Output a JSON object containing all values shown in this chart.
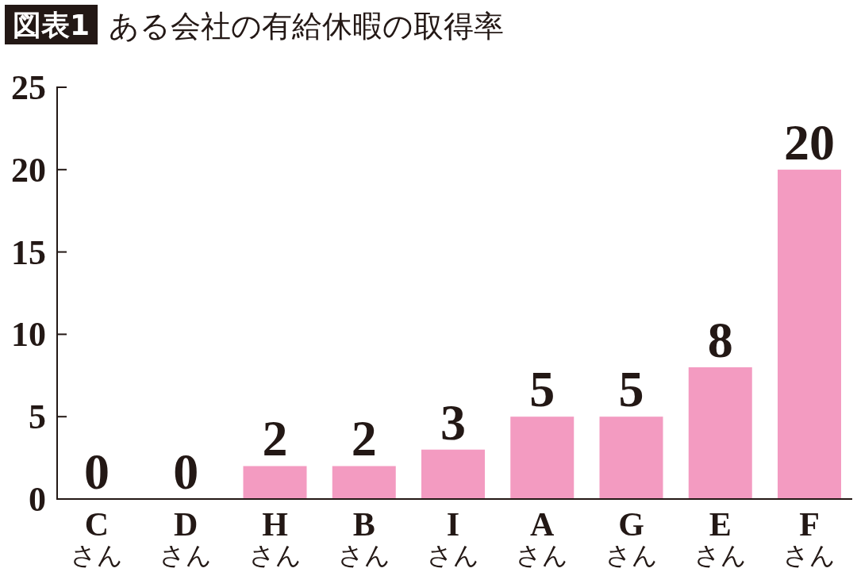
{
  "chart_data": {
    "type": "bar",
    "title": "ある会社の有給休暇の取得率",
    "annotations": [
      "図表1"
    ],
    "categories": [
      "C\nさん",
      "D\nさん",
      "H\nさん",
      "B\nさん",
      "I\nさん",
      "A\nさん",
      "G\nさん",
      "E\nさん",
      "F\nさん"
    ],
    "values": [
      0,
      0,
      2,
      2,
      3,
      5,
      5,
      8,
      20
    ],
    "color": "#f39bc1",
    "ylim": [
      0,
      25
    ],
    "yticks": [
      0,
      5,
      10,
      15,
      20,
      25
    ],
    "data_labels": true
  }
}
